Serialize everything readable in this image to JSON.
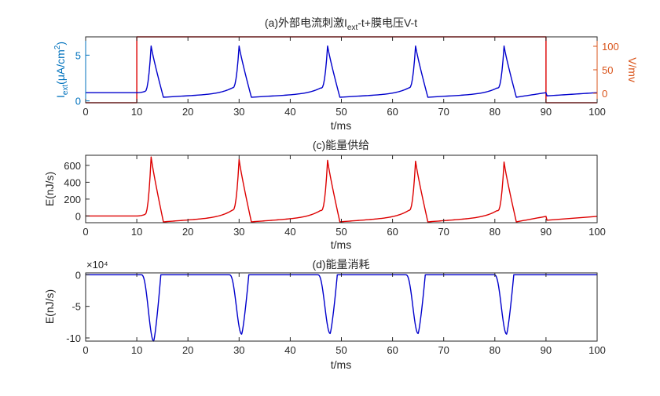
{
  "colors": {
    "axis": "#262626",
    "left_axis_blue": "#0072BD",
    "right_axis_orange": "#D95319",
    "series_blue": "#0000CC",
    "series_red": "#DD0000"
  },
  "chart_data": [
    {
      "type": "line",
      "title": "(a)外部电流刺激I_ext-t+膜电压V-t",
      "title_parts": {
        "pre": "(a)外部电流刺激I",
        "sub": "ext",
        "post": "-t+膜电压V-t"
      },
      "xlabel": "t/ms",
      "ylabel_left": "I_ext(μA/cm²)",
      "ylabel_left_parts": {
        "main": "I",
        "sub": "ext",
        "mid": "(μA/cm",
        "sup": "2",
        "end": ")"
      },
      "ylabel_right": "V/mv",
      "xlim": [
        0,
        100
      ],
      "ylim_left": [
        -0.2,
        7
      ],
      "ylim_right": [
        -20,
        120
      ],
      "x_ticks": [
        "0",
        "10",
        "20",
        "30",
        "40",
        "50",
        "60",
        "70",
        "80",
        "90",
        "100"
      ],
      "y_ticks_left": [
        "0",
        "5"
      ],
      "y_ticks_right": [
        "0",
        "50",
        "100"
      ],
      "series": [
        {
          "axis": "right",
          "style": "square_pulse",
          "low": -20,
          "high": 120,
          "on": 10,
          "off": 90
        },
        {
          "axis": "left",
          "style": "spike_train",
          "baseline": 0.9,
          "spike_times": [
            12.8,
            30.0,
            47.3,
            64.5,
            81.8
          ],
          "peak": 6.0,
          "trough": 0.4,
          "drift_end": 0.9
        }
      ]
    },
    {
      "type": "line",
      "title": "(c)能量供给",
      "xlabel": "t/ms",
      "ylabel": "E(nJ/s)",
      "xlim": [
        0,
        100
      ],
      "ylim": [
        -80,
        720
      ],
      "x_ticks": [
        "0",
        "10",
        "20",
        "30",
        "40",
        "50",
        "60",
        "70",
        "80",
        "90",
        "100"
      ],
      "y_ticks": [
        "0",
        "200",
        "400",
        "600"
      ],
      "series": [
        {
          "style": "spike_train",
          "baseline": 0,
          "spike_times": [
            12.8,
            30.0,
            47.3,
            64.5,
            81.8
          ],
          "peaks": [
            700,
            670,
            660,
            650,
            640
          ],
          "trough": -70,
          "drift_end": -5
        }
      ]
    },
    {
      "type": "line",
      "title": "(d)能量消耗",
      "exponent_label": "×10⁴",
      "xlabel": "t/ms",
      "ylabel": "E(nJ/s)",
      "xlim": [
        0,
        100
      ],
      "ylim": [
        -10.5,
        0.3
      ],
      "x_ticks": [
        "0",
        "10",
        "20",
        "30",
        "40",
        "50",
        "60",
        "70",
        "80",
        "90",
        "100"
      ],
      "y_ticks": [
        "0",
        "-5",
        "-10"
      ],
      "series": [
        {
          "style": "dip_train",
          "baseline": 0,
          "dip_times": [
            13.3,
            30.5,
            47.8,
            65.0,
            82.3
          ],
          "depths": [
            -10.5,
            -9.4,
            -9.3,
            -9.3,
            -9.4
          ]
        }
      ]
    }
  ]
}
